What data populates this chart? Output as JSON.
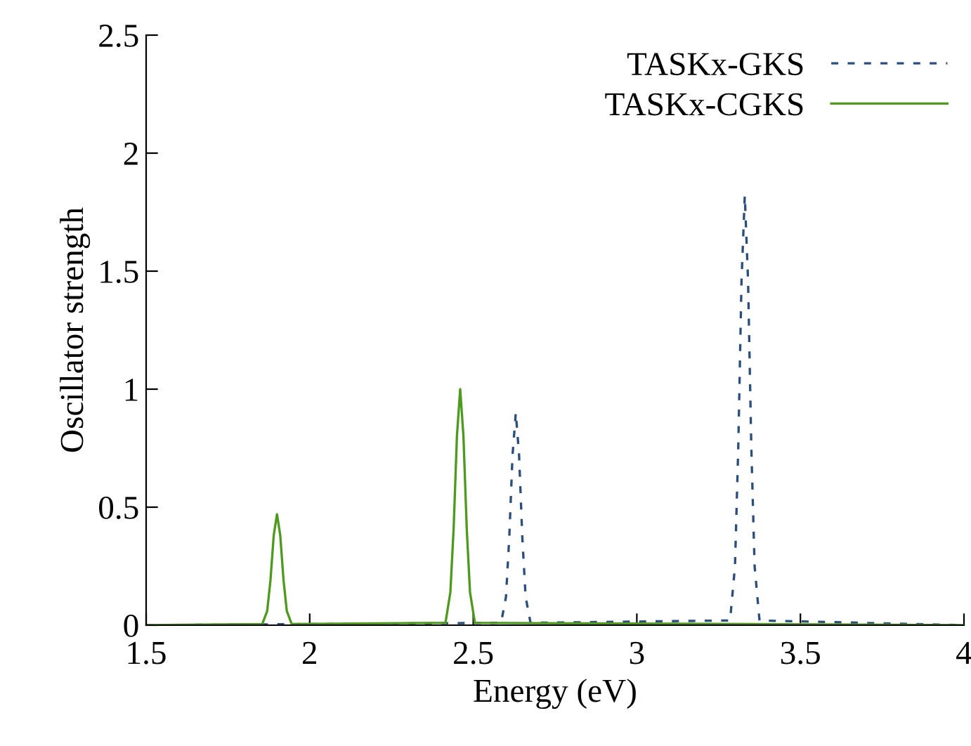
{
  "chart_data": {
    "type": "line",
    "xlabel": "Energy (eV)",
    "ylabel": "Oscillator strength",
    "xlim": [
      1.5,
      4
    ],
    "ylim": [
      0,
      2.5
    ],
    "xticks": [
      1.5,
      2,
      2.5,
      3,
      3.5,
      4
    ],
    "yticks": [
      0,
      0.5,
      1,
      1.5,
      2,
      2.5
    ],
    "grid": false,
    "legend": "top right",
    "series": [
      {
        "name": "TASKx-GKS",
        "color": "#2b4f7a",
        "line_style": "dashed",
        "x": [
          1.5,
          2.585,
          2.6,
          2.61,
          2.62,
          2.63,
          2.64,
          2.65,
          2.66,
          2.675,
          3.285,
          3.3,
          3.31,
          3.32,
          3.33,
          3.34,
          3.35,
          3.36,
          3.375,
          4
        ],
        "values": [
          0,
          0.01,
          0.12,
          0.37,
          0.72,
          0.9,
          0.72,
          0.37,
          0.12,
          0.01,
          0.02,
          0.25,
          0.75,
          1.46,
          1.82,
          1.46,
          0.75,
          0.25,
          0.02,
          0
        ]
      },
      {
        "name": "TASKx-CGKS",
        "color": "#4e9a1e",
        "line_style": "solid",
        "x": [
          1.5,
          1.855,
          1.87,
          1.88,
          1.89,
          1.9,
          1.91,
          1.92,
          1.93,
          1.945,
          2.415,
          2.43,
          2.44,
          2.45,
          2.46,
          2.47,
          2.48,
          2.49,
          2.505,
          4
        ],
        "values": [
          0,
          0.005,
          0.06,
          0.19,
          0.38,
          0.47,
          0.38,
          0.19,
          0.06,
          0.005,
          0.01,
          0.14,
          0.41,
          0.8,
          1.0,
          0.8,
          0.41,
          0.14,
          0.01,
          0
        ]
      }
    ]
  }
}
